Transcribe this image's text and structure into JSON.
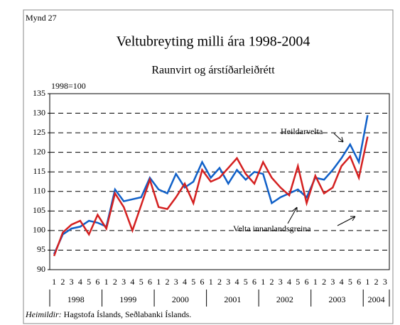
{
  "chart_data": {
    "type": "line",
    "figure_label": "Mynd 27",
    "title": "Veltubreyting milli ára 1998-2004",
    "subtitle": "Raunvirt og árstíðarleiðrétt",
    "y_unit": "1998=100",
    "categories": [
      "1",
      "2",
      "3",
      "4",
      "5",
      "6",
      "1",
      "2",
      "3",
      "4",
      "5",
      "6",
      "1",
      "2",
      "3",
      "4",
      "5",
      "6",
      "1",
      "2",
      "3",
      "4",
      "5",
      "6",
      "1",
      "2",
      "3",
      "4",
      "5",
      "6",
      "1",
      "2",
      "3",
      "4",
      "5",
      "6",
      "1",
      "2",
      "3"
    ],
    "years": [
      "1998",
      "1999",
      "2000",
      "2001",
      "2002",
      "2003",
      "2004"
    ],
    "series": [
      {
        "name": "Heildarvelta",
        "color": "#1060c8",
        "values": [
          94,
          99,
          100.5,
          101,
          102.5,
          102,
          101,
          110.5,
          107.5,
          108,
          108.5,
          113.5,
          110.5,
          109.5,
          114.5,
          111,
          112.5,
          117.5,
          113.5,
          116,
          112,
          115.5,
          113,
          115,
          114.5,
          107,
          108.5,
          109.5,
          110.5,
          108.5,
          113.5,
          113,
          115.5,
          118.5,
          122,
          117.5,
          129.5,
          null,
          null
        ]
      },
      {
        "name": "Velta innanlandsgreina",
        "color": "#d42020",
        "values": [
          93.5,
          99.5,
          101.5,
          102.5,
          99,
          104,
          100.5,
          109.5,
          106,
          100,
          106.5,
          113,
          106,
          105.5,
          108.5,
          112,
          107,
          115.5,
          112.5,
          113.5,
          116,
          118.5,
          114.5,
          112,
          117.5,
          113.5,
          111,
          109,
          116.5,
          107,
          114,
          109.5,
          111,
          116.5,
          119,
          113.5,
          124,
          null,
          null
        ]
      }
    ],
    "ylim": [
      90,
      135
    ],
    "yticks": [
      90,
      95,
      100,
      105,
      110,
      115,
      120,
      125,
      130,
      135
    ],
    "grid": true,
    "source_label": "Heimildir:",
    "source": "Hagstofa Íslands, Seðlabanki Íslands."
  }
}
